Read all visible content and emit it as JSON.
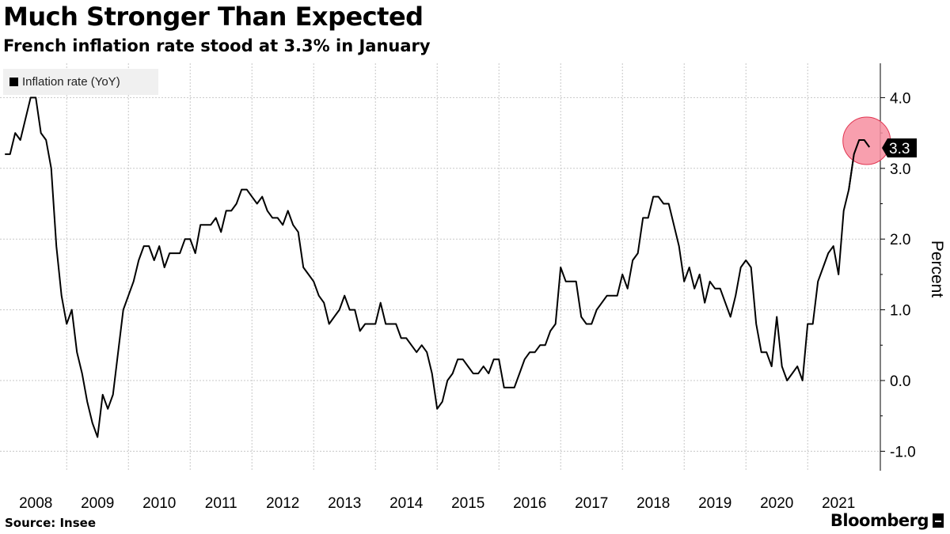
{
  "header": {
    "title": "Much Stronger Than Expected",
    "subtitle": "French inflation rate stood at 3.3% in January"
  },
  "footer": {
    "source": "Source: Insee",
    "brand": "Bloomberg"
  },
  "colors": {
    "line": "#000000",
    "grid": "#c8c8c8",
    "highlight_fill": "#f78ea0",
    "highlight_stroke": "#e0334f",
    "legend_bg": "#f0f0f0"
  },
  "chart_data": {
    "type": "line",
    "title": "Much Stronger Than Expected",
    "subtitle": "French inflation rate stood at 3.3% in January",
    "xlabel": "",
    "ylabel": "Percent",
    "ylim": [
      -1.3,
      4.5
    ],
    "yticks": [
      -1.0,
      0.0,
      1.0,
      2.0,
      3.0,
      4.0
    ],
    "ytick_labels": [
      "-1.0",
      "0.0",
      "1.0",
      "2.0",
      "3.0",
      "4.0"
    ],
    "xticks": [
      2008,
      2009,
      2010,
      2011,
      2012,
      2013,
      2014,
      2015,
      2016,
      2017,
      2018,
      2019,
      2020,
      2021
    ],
    "xtick_labels": [
      "2008",
      "2009",
      "2010",
      "2011",
      "2012",
      "2013",
      "2014",
      "2015",
      "2016",
      "2017",
      "2018",
      "2019",
      "2020",
      "2021"
    ],
    "grid": true,
    "legend": [
      "Inflation rate (YoY)"
    ],
    "legend_position": "top-left",
    "last_value_label": "3.3",
    "highlight": "last-point",
    "series": [
      {
        "name": "Inflation rate (YoY)",
        "start": "2008-01",
        "frequency": "monthly",
        "values": [
          3.2,
          3.2,
          3.5,
          3.4,
          3.7,
          4.0,
          4.0,
          3.5,
          3.4,
          3.0,
          1.9,
          1.2,
          0.8,
          1.0,
          0.4,
          0.1,
          -0.3,
          -0.6,
          -0.8,
          -0.2,
          -0.4,
          -0.2,
          0.4,
          1.0,
          1.2,
          1.4,
          1.7,
          1.9,
          1.9,
          1.7,
          1.9,
          1.6,
          1.8,
          1.8,
          1.8,
          2.0,
          2.0,
          1.8,
          2.2,
          2.2,
          2.2,
          2.3,
          2.1,
          2.4,
          2.4,
          2.5,
          2.7,
          2.7,
          2.6,
          2.5,
          2.6,
          2.4,
          2.3,
          2.3,
          2.2,
          2.4,
          2.2,
          2.1,
          1.6,
          1.5,
          1.4,
          1.2,
          1.1,
          0.8,
          0.9,
          1.0,
          1.2,
          1.0,
          1.0,
          0.7,
          0.8,
          0.8,
          0.8,
          1.1,
          0.8,
          0.8,
          0.8,
          0.6,
          0.6,
          0.5,
          0.4,
          0.5,
          0.4,
          0.1,
          -0.4,
          -0.3,
          0.0,
          0.1,
          0.3,
          0.3,
          0.2,
          0.1,
          0.1,
          0.2,
          0.1,
          0.3,
          0.3,
          -0.1,
          -0.1,
          -0.1,
          0.1,
          0.3,
          0.4,
          0.4,
          0.5,
          0.5,
          0.7,
          0.8,
          1.6,
          1.4,
          1.4,
          1.4,
          0.9,
          0.8,
          0.8,
          1.0,
          1.1,
          1.2,
          1.2,
          1.2,
          1.5,
          1.3,
          1.7,
          1.8,
          2.3,
          2.3,
          2.6,
          2.6,
          2.5,
          2.5,
          2.2,
          1.9,
          1.4,
          1.6,
          1.3,
          1.5,
          1.1,
          1.4,
          1.3,
          1.3,
          1.1,
          0.9,
          1.2,
          1.6,
          1.7,
          1.6,
          0.8,
          0.4,
          0.4,
          0.2,
          0.9,
          0.2,
          0.0,
          0.1,
          0.2,
          0.0,
          0.8,
          0.8,
          1.4,
          1.6,
          1.8,
          1.9,
          1.5,
          2.4,
          2.7,
          3.2,
          3.4,
          3.4,
          3.3
        ]
      }
    ]
  }
}
